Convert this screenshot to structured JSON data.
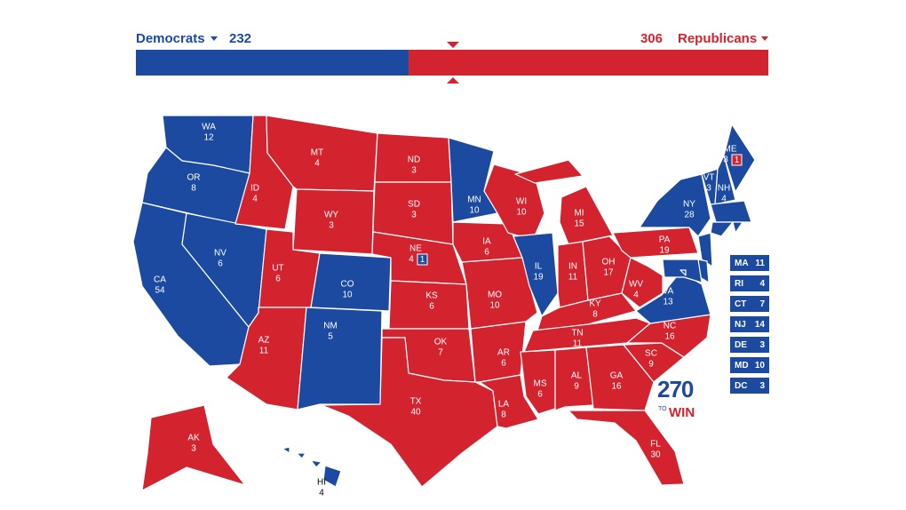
{
  "header": {
    "democrats": {
      "label": "Democrats",
      "total": 232,
      "color": "#1b4aa0"
    },
    "republicans": {
      "label": "Republicans",
      "total": 306,
      "color": "#d2232f"
    }
  },
  "states": [
    {
      "abbr": "WA",
      "votes": 12,
      "party": "democrats"
    },
    {
      "abbr": "OR",
      "votes": 8,
      "party": "democrats"
    },
    {
      "abbr": "CA",
      "votes": 54,
      "party": "democrats"
    },
    {
      "abbr": "NV",
      "votes": 6,
      "party": "democrats"
    },
    {
      "abbr": "ID",
      "votes": 4,
      "party": "republicans"
    },
    {
      "abbr": "MT",
      "votes": 4,
      "party": "republicans"
    },
    {
      "abbr": "WY",
      "votes": 3,
      "party": "republicans"
    },
    {
      "abbr": "UT",
      "votes": 6,
      "party": "republicans"
    },
    {
      "abbr": "CO",
      "votes": 10,
      "party": "democrats"
    },
    {
      "abbr": "AZ",
      "votes": 11,
      "party": "republicans"
    },
    {
      "abbr": "NM",
      "votes": 5,
      "party": "democrats"
    },
    {
      "abbr": "ND",
      "votes": 3,
      "party": "republicans"
    },
    {
      "abbr": "SD",
      "votes": 3,
      "party": "republicans"
    },
    {
      "abbr": "NE",
      "votes": 4,
      "party": "republicans",
      "extra_district": {
        "votes": 1,
        "party": "democrats"
      }
    },
    {
      "abbr": "KS",
      "votes": 6,
      "party": "republicans"
    },
    {
      "abbr": "OK",
      "votes": 7,
      "party": "republicans"
    },
    {
      "abbr": "TX",
      "votes": 40,
      "party": "republicans"
    },
    {
      "abbr": "MN",
      "votes": 10,
      "party": "democrats"
    },
    {
      "abbr": "IA",
      "votes": 6,
      "party": "republicans"
    },
    {
      "abbr": "MO",
      "votes": 10,
      "party": "republicans"
    },
    {
      "abbr": "AR",
      "votes": 6,
      "party": "republicans"
    },
    {
      "abbr": "LA",
      "votes": 8,
      "party": "republicans"
    },
    {
      "abbr": "WI",
      "votes": 10,
      "party": "republicans"
    },
    {
      "abbr": "IL",
      "votes": 19,
      "party": "democrats"
    },
    {
      "abbr": "MI",
      "votes": 15,
      "party": "republicans"
    },
    {
      "abbr": "IN",
      "votes": 11,
      "party": "republicans"
    },
    {
      "abbr": "OH",
      "votes": 17,
      "party": "republicans"
    },
    {
      "abbr": "KY",
      "votes": 8,
      "party": "republicans"
    },
    {
      "abbr": "TN",
      "votes": 11,
      "party": "republicans"
    },
    {
      "abbr": "MS",
      "votes": 6,
      "party": "republicans"
    },
    {
      "abbr": "AL",
      "votes": 9,
      "party": "republicans"
    },
    {
      "abbr": "GA",
      "votes": 16,
      "party": "republicans"
    },
    {
      "abbr": "FL",
      "votes": 30,
      "party": "republicans"
    },
    {
      "abbr": "SC",
      "votes": 9,
      "party": "republicans"
    },
    {
      "abbr": "NC",
      "votes": 16,
      "party": "republicans"
    },
    {
      "abbr": "VA",
      "votes": 13,
      "party": "democrats"
    },
    {
      "abbr": "WV",
      "votes": 4,
      "party": "republicans"
    },
    {
      "abbr": "PA",
      "votes": 19,
      "party": "republicans"
    },
    {
      "abbr": "NY",
      "votes": 28,
      "party": "democrats"
    },
    {
      "abbr": "VT",
      "votes": 3,
      "party": "democrats"
    },
    {
      "abbr": "NH",
      "votes": 4,
      "party": "democrats"
    },
    {
      "abbr": "ME",
      "votes": 3,
      "party": "democrats",
      "extra_district": {
        "votes": 1,
        "party": "republicans"
      }
    },
    {
      "abbr": "AK",
      "votes": 3,
      "party": "republicans"
    },
    {
      "abbr": "HI",
      "votes": 4,
      "party": "democrats"
    },
    {
      "abbr": "MA",
      "votes": 11,
      "party": "democrats",
      "inset": true
    },
    {
      "abbr": "RI",
      "votes": 4,
      "party": "democrats",
      "inset": true
    },
    {
      "abbr": "CT",
      "votes": 7,
      "party": "democrats",
      "inset": true
    },
    {
      "abbr": "NJ",
      "votes": 14,
      "party": "democrats",
      "inset": true
    },
    {
      "abbr": "DE",
      "votes": 3,
      "party": "democrats",
      "inset": true
    },
    {
      "abbr": "MD",
      "votes": 10,
      "party": "democrats",
      "inset": true
    },
    {
      "abbr": "DC",
      "votes": 3,
      "party": "democrats",
      "inset": true
    }
  ],
  "logo": {
    "number": "270",
    "to": "TO",
    "win": "WIN"
  }
}
